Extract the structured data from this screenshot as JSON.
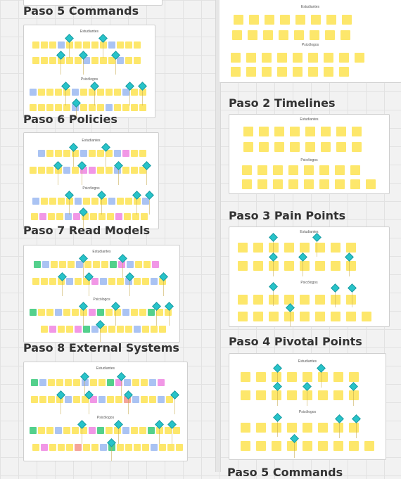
{
  "frame_titles": {
    "paso5_left": "Paso 5 Commands",
    "paso6": "Paso 6 Policies",
    "paso7": "Paso 7 Read Models",
    "paso8": "Paso 8 External Systems",
    "paso2": "Paso 2 Timelines",
    "paso3": "Paso 3 Pain Points",
    "paso4": "Paso 4 Pivotal Points",
    "paso5_right": "Paso 5 Commands"
  },
  "lane_labels": {
    "estudiantes": "Estudiantes",
    "psicologos": "Psicólogos"
  }
}
